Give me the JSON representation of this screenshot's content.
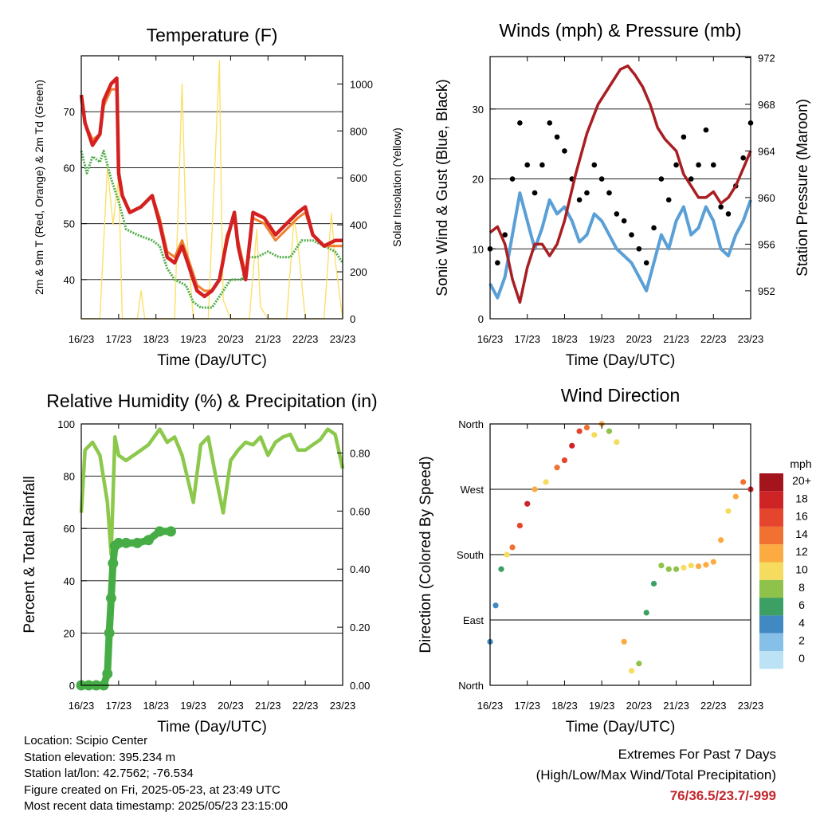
{
  "colors": {
    "temp_2m": "#d42020",
    "temp_9m": "#ee8030",
    "dewpoint": "#4fae48",
    "solar": "#fbe06a",
    "sonic_wind": "#5a9fd6",
    "gust": "#000000",
    "pressure": "#a81e22",
    "rh": "#8cc84b",
    "precip": "#46ad46",
    "extremes": "#c0272d"
  },
  "chart_data": [
    {
      "type": "line",
      "id": "temperature",
      "title": "Temperature (F)",
      "xlabel": "Time (Day/UTC)",
      "ylabel": "2m & 9m T (Red, Orange) & 2m Td (Green)",
      "y2label": "Solar Insolation (Yellow)",
      "x_ticks": [
        "16/23",
        "17/23",
        "18/23",
        "19/23",
        "20/23",
        "21/23",
        "22/23",
        "23/23"
      ],
      "xlim": [
        0,
        7
      ],
      "ylim": [
        33,
        80
      ],
      "y_ticks": [
        40,
        50,
        60,
        70
      ],
      "y2lim": [
        0,
        1120
      ],
      "y2_ticks": [
        0,
        200,
        400,
        600,
        800,
        1000
      ],
      "grid": true,
      "series": [
        {
          "name": "2m T",
          "axis": "left",
          "x": [
            0,
            0.1,
            0.3,
            0.5,
            0.6,
            0.8,
            0.95,
            1.0,
            1.1,
            1.3,
            1.6,
            1.9,
            2.1,
            2.3,
            2.5,
            2.7,
            2.9,
            3.1,
            3.3,
            3.5,
            3.7,
            3.9,
            4.1,
            4.2,
            4.4,
            4.6,
            4.9,
            5.2,
            5.5,
            5.8,
            6.0,
            6.2,
            6.5,
            6.8,
            7.0
          ],
          "values": [
            73,
            68,
            64,
            66,
            72,
            75,
            76,
            59,
            55,
            52,
            53,
            55,
            50,
            44,
            43,
            46,
            42,
            38,
            37,
            38,
            40,
            47,
            52,
            46,
            40,
            52,
            51,
            48,
            50,
            52,
            53,
            48,
            46,
            47,
            47
          ]
        },
        {
          "name": "9m T",
          "axis": "left",
          "x": [
            0,
            0.1,
            0.3,
            0.5,
            0.6,
            0.8,
            0.95,
            1.0,
            1.1,
            1.3,
            1.6,
            1.9,
            2.1,
            2.3,
            2.5,
            2.7,
            2.9,
            3.1,
            3.3,
            3.5,
            3.7,
            3.9,
            4.1,
            4.2,
            4.4,
            4.6,
            4.9,
            5.2,
            5.5,
            5.8,
            6.0,
            6.2,
            6.5,
            6.8,
            7.0
          ],
          "values": [
            72,
            68,
            65,
            66,
            71,
            74,
            74,
            58,
            55,
            52,
            53,
            55,
            51,
            45,
            44,
            47,
            43,
            39,
            38,
            38,
            40,
            48,
            51,
            47,
            41,
            51,
            50,
            47,
            49,
            51,
            52,
            48,
            46,
            46,
            46
          ]
        },
        {
          "name": "2m Td",
          "axis": "left",
          "x": [
            0,
            0.15,
            0.3,
            0.5,
            0.6,
            0.8,
            1.0,
            1.2,
            1.5,
            1.9,
            2.1,
            2.3,
            2.5,
            2.8,
            3.0,
            3.2,
            3.5,
            3.8,
            4.0,
            4.3,
            4.5,
            4.7,
            5.0,
            5.3,
            5.6,
            5.9,
            6.2,
            6.5,
            6.8,
            7.0
          ],
          "values": [
            63,
            59,
            62,
            61,
            63,
            58,
            54,
            49,
            48,
            47,
            46,
            42,
            40,
            39,
            36,
            35,
            35,
            38,
            40,
            40,
            44,
            44,
            45,
            44,
            44,
            47,
            47,
            46,
            45,
            43
          ]
        },
        {
          "name": "Solar Insolation",
          "axis": "right",
          "x": [
            0,
            0.5,
            0.7,
            0.85,
            1.0,
            1.1,
            1.5,
            1.6,
            1.7,
            2.0,
            2.5,
            2.7,
            2.8,
            3.0,
            3.4,
            3.7,
            3.75,
            3.8,
            4.0,
            4.5,
            4.7,
            4.8,
            5.0,
            5.5,
            5.7,
            5.8,
            6.0,
            6.5,
            6.7,
            6.8,
            7.0
          ],
          "values": [
            0,
            0,
            650,
            400,
            600,
            0,
            0,
            120,
            0,
            0,
            0,
            1000,
            400,
            0,
            0,
            1100,
            500,
            80,
            0,
            0,
            380,
            50,
            0,
            0,
            430,
            320,
            0,
            0,
            450,
            250,
            0
          ]
        }
      ]
    },
    {
      "type": "line",
      "id": "winds-pressure",
      "title": "Winds (mph) & Pressure (mb)",
      "xlabel": "Time (Day/UTC)",
      "ylabel": "Sonic Wind & Gust (Blue, Black)",
      "y2label": "Station Pressure (Maroon)",
      "x_ticks": [
        "16/23",
        "17/23",
        "18/23",
        "19/23",
        "20/23",
        "21/23",
        "22/23",
        "23/23"
      ],
      "xlim": [
        0,
        7
      ],
      "ylim": [
        0,
        37.5
      ],
      "y_ticks": [
        0,
        10,
        20,
        30
      ],
      "y2lim": [
        949.6,
        972.1
      ],
      "y2_ticks": [
        952,
        956,
        960,
        964,
        968,
        972
      ],
      "grid": true,
      "series": [
        {
          "name": "Sonic Wind",
          "axis": "left",
          "x": [
            0,
            0.2,
            0.4,
            0.6,
            0.8,
            1.0,
            1.2,
            1.4,
            1.6,
            1.8,
            2.0,
            2.2,
            2.4,
            2.6,
            2.8,
            3.0,
            3.2,
            3.4,
            3.6,
            3.8,
            4.0,
            4.2,
            4.4,
            4.6,
            4.8,
            5.0,
            5.2,
            5.4,
            5.6,
            5.8,
            6.0,
            6.2,
            6.4,
            6.6,
            6.8,
            7.0
          ],
          "values": [
            5,
            3,
            6,
            12,
            18,
            14,
            10,
            13,
            17,
            15,
            16,
            14,
            11,
            12,
            15,
            14,
            12,
            10,
            9,
            8,
            6,
            4,
            8,
            12,
            10,
            14,
            16,
            12,
            13,
            16,
            14,
            10,
            9,
            12,
            14,
            17
          ]
        },
        {
          "name": "Gust",
          "axis": "left",
          "x": [
            0,
            0.2,
            0.4,
            0.6,
            0.8,
            1.0,
            1.2,
            1.4,
            1.6,
            1.8,
            2.0,
            2.2,
            2.4,
            2.6,
            2.8,
            3.0,
            3.2,
            3.4,
            3.6,
            3.8,
            4.0,
            4.2,
            4.4,
            4.6,
            4.8,
            5.0,
            5.2,
            5.4,
            5.6,
            5.8,
            6.0,
            6.2,
            6.4,
            6.6,
            6.8,
            7.0
          ],
          "values": [
            10,
            8,
            12,
            20,
            28,
            22,
            18,
            22,
            28,
            26,
            24,
            20,
            17,
            18,
            22,
            20,
            18,
            15,
            14,
            12,
            10,
            8,
            13,
            20,
            17,
            22,
            26,
            20,
            22,
            27,
            22,
            16,
            15,
            19,
            23,
            28
          ]
        },
        {
          "name": "Station Pressure",
          "axis": "right",
          "x": [
            0,
            0.2,
            0.4,
            0.6,
            0.8,
            1.0,
            1.2,
            1.4,
            1.6,
            1.8,
            2.0,
            2.3,
            2.6,
            2.9,
            3.2,
            3.5,
            3.7,
            3.9,
            4.1,
            4.3,
            4.5,
            4.7,
            5.0,
            5.2,
            5.4,
            5.6,
            5.8,
            6.0,
            6.2,
            6.4,
            6.6,
            6.8,
            7.0
          ],
          "values": [
            957,
            957.5,
            956,
            953,
            951,
            954,
            956,
            956,
            955,
            956,
            958,
            962,
            965.5,
            968,
            969.5,
            971,
            971.3,
            970.5,
            969.5,
            968,
            966,
            965,
            964,
            962,
            961,
            960,
            960,
            960.5,
            959.5,
            960,
            961,
            962.5,
            964
          ]
        }
      ]
    },
    {
      "type": "line",
      "id": "rh-precip",
      "title": "Relative Humidity (%) & Precipitation (in)",
      "xlabel": "Time (Day/UTC)",
      "ylabel": "Percent & Total Rainfall",
      "x_ticks": [
        "16/23",
        "17/23",
        "18/23",
        "19/23",
        "20/23",
        "21/23",
        "22/23",
        "23/23"
      ],
      "xlim": [
        0,
        7
      ],
      "ylim": [
        0,
        100
      ],
      "y_ticks": [
        0,
        20,
        40,
        60,
        80,
        100
      ],
      "y2lim": [
        0,
        0.9
      ],
      "y2_ticks": [
        "0.00",
        "0.20",
        "0.40",
        "0.60",
        "0.80"
      ],
      "grid": true,
      "series": [
        {
          "name": "Relative Humidity",
          "axis": "left",
          "x": [
            0,
            0.1,
            0.3,
            0.5,
            0.7,
            0.8,
            0.9,
            1.0,
            1.2,
            1.5,
            1.8,
            2.1,
            2.3,
            2.5,
            2.7,
            2.9,
            3.0,
            3.2,
            3.4,
            3.6,
            3.8,
            4.0,
            4.2,
            4.4,
            4.6,
            4.8,
            5.0,
            5.2,
            5.4,
            5.6,
            5.8,
            6.0,
            6.2,
            6.4,
            6.6,
            6.8,
            7.0
          ],
          "values": [
            66,
            90,
            93,
            88,
            70,
            50,
            95,
            88,
            86,
            89,
            92,
            98,
            93,
            95,
            88,
            76,
            70,
            92,
            95,
            80,
            66,
            86,
            90,
            93,
            92,
            95,
            88,
            93,
            95,
            96,
            90,
            90,
            92,
            94,
            98,
            96,
            83
          ]
        },
        {
          "name": "Total Rainfall",
          "axis": "right",
          "x": [
            0,
            0.2,
            0.4,
            0.6,
            0.7,
            0.75,
            0.8,
            0.85,
            0.9,
            1.0,
            1.2,
            1.5,
            1.8,
            2.1,
            2.4
          ],
          "values": [
            0,
            0,
            0,
            0,
            0.04,
            0.18,
            0.3,
            0.42,
            0.48,
            0.49,
            0.49,
            0.49,
            0.5,
            0.53,
            0.53
          ]
        }
      ]
    },
    {
      "type": "scatter",
      "id": "wind-direction",
      "title": "Wind Direction",
      "xlabel": "Time (Day/UTC)",
      "ylabel": "Direction (Colored By Speed)",
      "x_ticks": [
        "16/23",
        "17/23",
        "18/23",
        "19/23",
        "20/23",
        "21/23",
        "22/23",
        "23/23"
      ],
      "xlim": [
        0,
        7
      ],
      "ylim": [
        0,
        360
      ],
      "y_tick_values": [
        0,
        90,
        180,
        270,
        360
      ],
      "y_ticks": [
        "North",
        "East",
        "South",
        "West",
        "North"
      ],
      "grid": true,
      "x": [
        0,
        0.15,
        0.3,
        0.45,
        0.6,
        0.8,
        1.0,
        1.2,
        1.5,
        1.8,
        2.0,
        2.2,
        2.4,
        2.6,
        2.8,
        3.0,
        3.2,
        3.4,
        3.6,
        3.8,
        4.0,
        4.2,
        4.4,
        4.6,
        4.8,
        5.0,
        5.2,
        5.4,
        5.6,
        5.8,
        6.0,
        6.2,
        6.4,
        6.6,
        6.8,
        7.0
      ],
      "values": [
        60,
        110,
        160,
        180,
        190,
        220,
        250,
        270,
        280,
        300,
        310,
        330,
        350,
        355,
        345,
        360,
        350,
        335,
        60,
        20,
        30,
        100,
        140,
        165,
        160,
        160,
        162,
        165,
        164,
        166,
        170,
        200,
        240,
        260,
        280,
        270
      ],
      "speeds": [
        4,
        3,
        6,
        10,
        14,
        16,
        18,
        12,
        10,
        14,
        16,
        17,
        16,
        14,
        10,
        12,
        8,
        9,
        12,
        10,
        8,
        6,
        6,
        7,
        8,
        8,
        9,
        10,
        11,
        12,
        11,
        12,
        10,
        11,
        14,
        18
      ],
      "legend": {
        "title": "mph",
        "labels": [
          "20+",
          "18",
          "16",
          "14",
          "12",
          "10",
          "8",
          "6",
          "4",
          "2",
          "0"
        ],
        "colors": [
          "#a3141c",
          "#cf2426",
          "#e5452c",
          "#f07131",
          "#fbab42",
          "#f6dc5e",
          "#8ec24a",
          "#3c9f63",
          "#4089c3",
          "#86c0e8",
          "#bce2f6"
        ]
      }
    }
  ],
  "footer": {
    "location": "Location: Scipio Center",
    "elevation": "Station elevation: 395.234 m",
    "latlon": "Station lat/lon: 42.7562; -76.534",
    "created": "Figure created on Fri, 2025-05-23, at 23:49 UTC",
    "recent": "Most recent data timestamp: 2025/05/23 23:15:00",
    "extremes_title": "Extremes For Past 7 Days",
    "extremes_subtitle": "(High/Low/Max Wind/Total Precipitation)",
    "extremes_value": "76/36.5/23.7/-999"
  }
}
